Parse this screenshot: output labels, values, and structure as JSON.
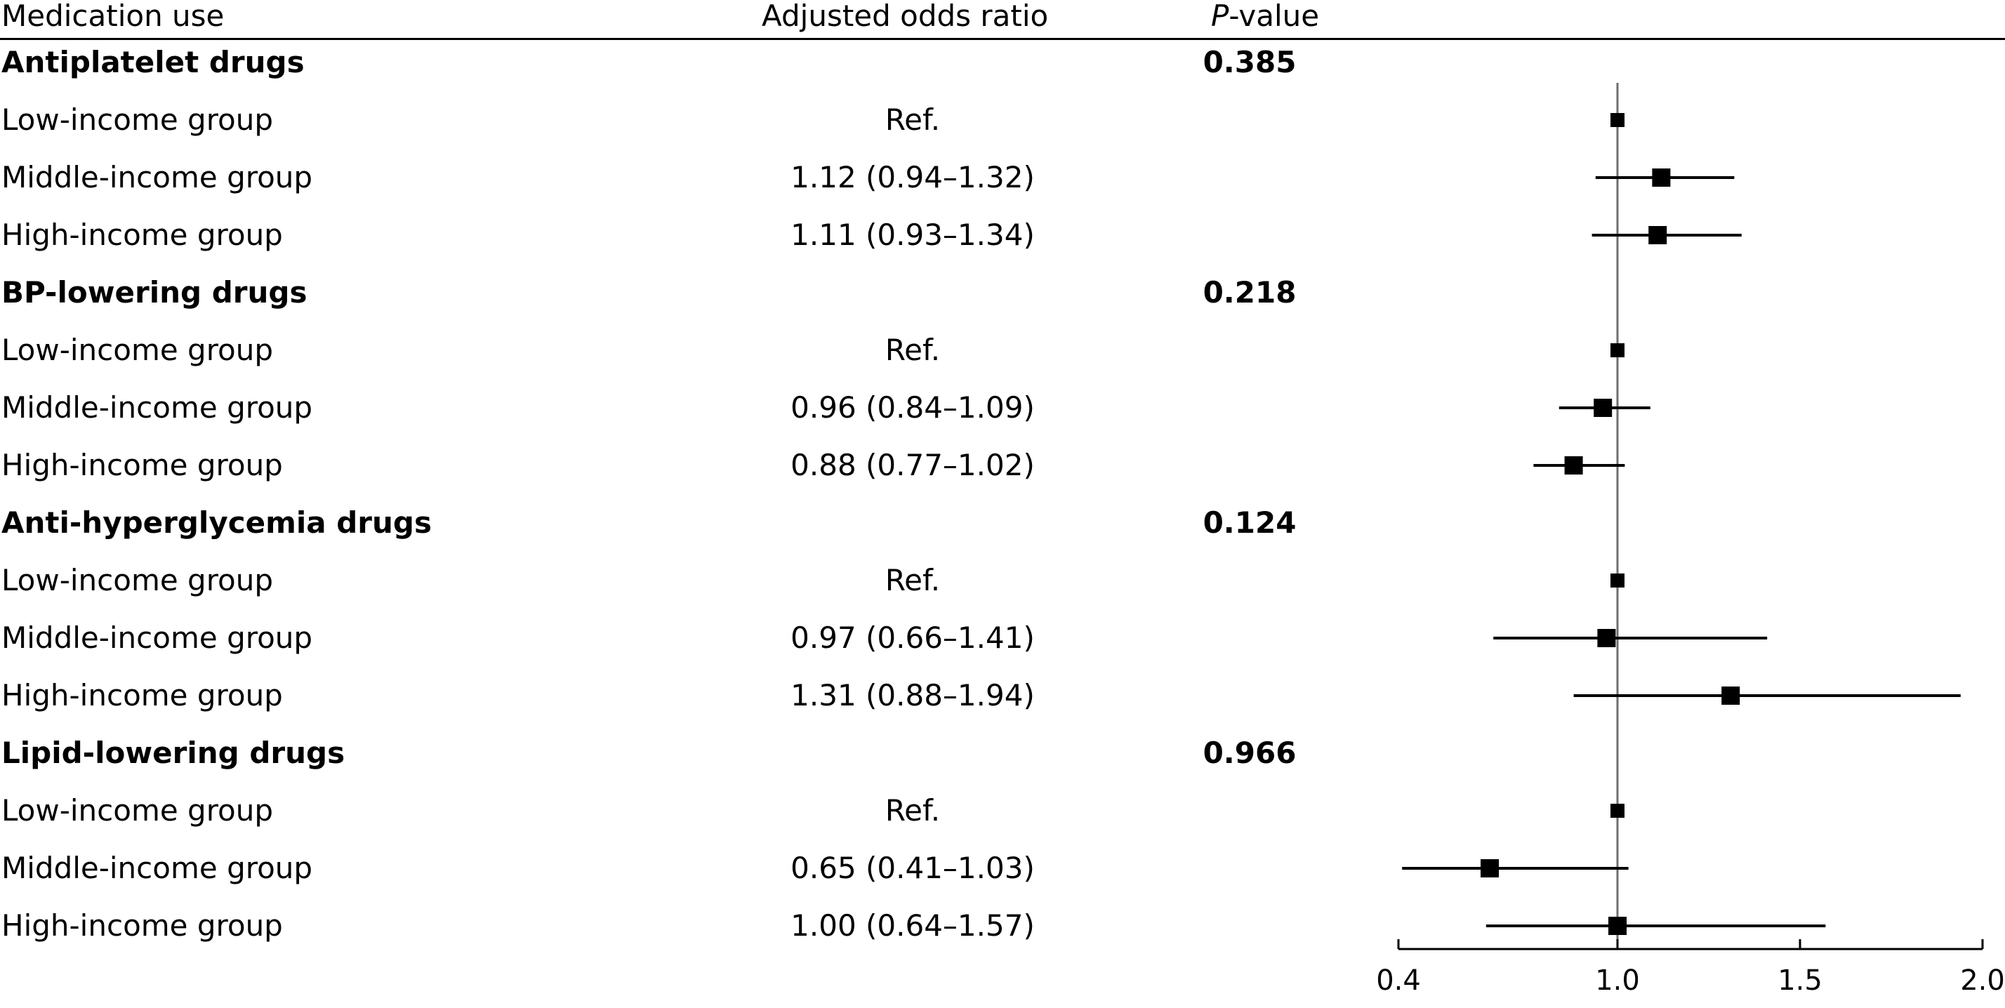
{
  "header": {
    "medication": "Medication use",
    "or": "Adjusted odds ratio",
    "p_italic": "P",
    "p_rest": "-value"
  },
  "rows": [
    {
      "type": "group",
      "label": "Antiplatelet drugs",
      "p": "0.385"
    },
    {
      "type": "item",
      "label": "Low-income group",
      "or_text": "Ref."
    },
    {
      "type": "item",
      "label": "Middle-income group",
      "or_text": "1.12 (0.94–1.32)"
    },
    {
      "type": "item",
      "label": "High-income group",
      "or_text": "1.11 (0.93–1.34)"
    },
    {
      "type": "group",
      "label": "BP-lowering drugs",
      "p": "0.218"
    },
    {
      "type": "item",
      "label": "Low-income group",
      "or_text": "Ref."
    },
    {
      "type": "item",
      "label": "Middle-income group",
      "or_text": "0.96 (0.84–1.09)"
    },
    {
      "type": "item",
      "label": "High-income group",
      "or_text": "0.88 (0.77–1.02)"
    },
    {
      "type": "group",
      "label": "Anti-hyperglycemia drugs",
      "p": "0.124"
    },
    {
      "type": "item",
      "label": "Low-income group",
      "or_text": "Ref."
    },
    {
      "type": "item",
      "label": "Middle-income group",
      "or_text": "0.97 (0.66–1.41)"
    },
    {
      "type": "item",
      "label": "High-income group",
      "or_text": "1.31 (0.88–1.94)"
    },
    {
      "type": "group",
      "label": "Lipid-lowering drugs",
      "p": "0.966"
    },
    {
      "type": "item",
      "label": "Low-income group",
      "or_text": "Ref."
    },
    {
      "type": "item",
      "label": "Middle-income group",
      "or_text": "0.65 (0.41–1.03)"
    },
    {
      "type": "item",
      "label": "High-income group",
      "or_text": "1.00 (0.64–1.57)"
    }
  ],
  "chart_data": {
    "type": "scatter",
    "subtype": "forest-plot",
    "title": "",
    "xlabel": "",
    "ylabel": "",
    "xlim": [
      0.4,
      2.0
    ],
    "xticks": [
      0.4,
      1.0,
      1.5,
      2.0
    ],
    "xtick_labels": [
      "0.4",
      "1.0",
      "1.5",
      "2.0"
    ],
    "reference_line": 1.0,
    "grid": false,
    "points": [
      {
        "row": 1,
        "or": 1.0,
        "ref": true
      },
      {
        "row": 2,
        "or": 1.12,
        "lo": 0.94,
        "hi": 1.32
      },
      {
        "row": 3,
        "or": 1.11,
        "lo": 0.93,
        "hi": 1.34
      },
      {
        "row": 5,
        "or": 1.0,
        "ref": true
      },
      {
        "row": 6,
        "or": 0.96,
        "lo": 0.84,
        "hi": 1.09
      },
      {
        "row": 7,
        "or": 0.88,
        "lo": 0.77,
        "hi": 1.02
      },
      {
        "row": 9,
        "or": 1.0,
        "ref": true
      },
      {
        "row": 10,
        "or": 0.97,
        "lo": 0.66,
        "hi": 1.41
      },
      {
        "row": 11,
        "or": 1.31,
        "lo": 0.88,
        "hi": 1.94
      },
      {
        "row": 13,
        "or": 1.0,
        "ref": true
      },
      {
        "row": 14,
        "or": 0.65,
        "lo": 0.41,
        "hi": 1.03
      },
      {
        "row": 15,
        "or": 1.0,
        "lo": 0.64,
        "hi": 1.57
      }
    ]
  }
}
